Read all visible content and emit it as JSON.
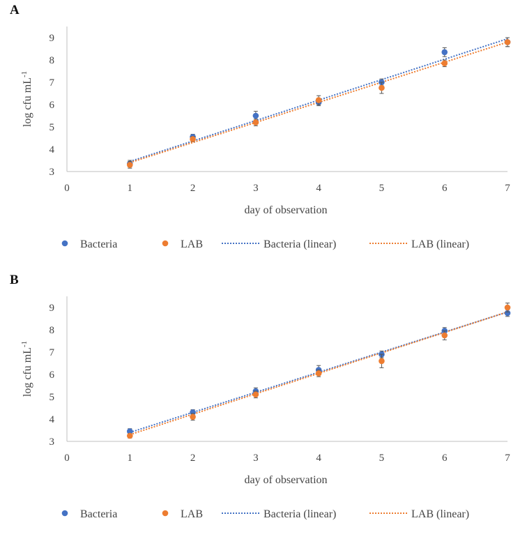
{
  "chart_data": [
    {
      "panel": "A",
      "type": "scatter",
      "xlabel": "day of observation",
      "ylabel": "log cfu mL",
      "ylabel_sup": "-1",
      "xlim": [
        0,
        7
      ],
      "ylim": [
        3,
        9.5
      ],
      "xticks": [
        0,
        1,
        2,
        3,
        4,
        5,
        6,
        7
      ],
      "yticks": [
        3,
        4,
        5,
        6,
        7,
        8,
        9
      ],
      "grid": false,
      "legend": "bottom",
      "series": [
        {
          "name": "Bacteria",
          "color": "#4472C4",
          "x": [
            1,
            2,
            3,
            4,
            5,
            6,
            7
          ],
          "y": [
            3.35,
            4.55,
            5.5,
            6.1,
            7.0,
            8.35,
            8.8
          ],
          "err": [
            0.15,
            0.12,
            0.2,
            0.15,
            0.15,
            0.2,
            0.2
          ]
        },
        {
          "name": "LAB",
          "color": "#ED7D31",
          "x": [
            1,
            2,
            3,
            4,
            5,
            6,
            7
          ],
          "y": [
            3.3,
            4.45,
            5.2,
            6.2,
            6.75,
            7.85,
            8.8
          ],
          "err": [
            0.15,
            0.12,
            0.15,
            0.2,
            0.25,
            0.15,
            0.2
          ]
        }
      ],
      "trendlines": [
        {
          "name": "Bacteria (linear)",
          "color": "#4472C4",
          "y_at_x1": 3.45,
          "y_at_x7": 8.95
        },
        {
          "name": "LAB (linear)",
          "color": "#ED7D31",
          "y_at_x1": 3.4,
          "y_at_x7": 8.8
        }
      ]
    },
    {
      "panel": "B",
      "type": "scatter",
      "xlabel": "day of observation",
      "ylabel": "log cfu mL",
      "ylabel_sup": "-1",
      "xlim": [
        0,
        7
      ],
      "ylim": [
        3,
        9.5
      ],
      "xticks": [
        0,
        1,
        2,
        3,
        4,
        5,
        6,
        7
      ],
      "yticks": [
        3,
        4,
        5,
        6,
        7,
        8,
        9
      ],
      "grid": false,
      "legend": "bottom",
      "series": [
        {
          "name": "Bacteria",
          "color": "#4472C4",
          "x": [
            1,
            2,
            3,
            4,
            5,
            6,
            7
          ],
          "y": [
            3.45,
            4.3,
            5.25,
            6.2,
            6.9,
            7.95,
            8.75
          ],
          "err": [
            0.12,
            0.12,
            0.15,
            0.2,
            0.15,
            0.15,
            0.15
          ]
        },
        {
          "name": "LAB",
          "color": "#ED7D31",
          "x": [
            1,
            2,
            3,
            4,
            5,
            6,
            7
          ],
          "y": [
            3.25,
            4.1,
            5.1,
            6.05,
            6.6,
            7.75,
            9.0
          ],
          "err": [
            0.1,
            0.15,
            0.15,
            0.15,
            0.3,
            0.2,
            0.2
          ]
        }
      ],
      "trendlines": [
        {
          "name": "Bacteria (linear)",
          "color": "#4472C4",
          "y_at_x1": 3.4,
          "y_at_x7": 8.8
        },
        {
          "name": "LAB (linear)",
          "color": "#ED7D31",
          "y_at_x1": 3.3,
          "y_at_x7": 8.8
        }
      ]
    }
  ]
}
